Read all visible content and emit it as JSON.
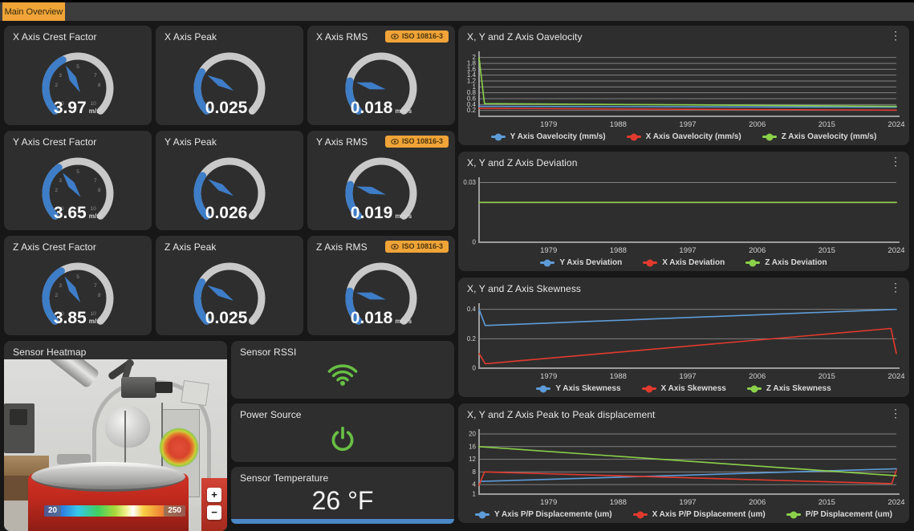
{
  "tab": {
    "label": "Main Overview"
  },
  "colors": {
    "accent_orange": "#f0a437",
    "gauge_blue": "#3e7dc7",
    "gauge_track": "#c9c9c9",
    "series_blue": "#5d9cd9",
    "series_red": "#e23a2e",
    "series_green": "#8bd14a",
    "status_green": "#68bf44",
    "temp_bar_blue": "#4a87c7"
  },
  "gauges": [
    {
      "title": "X Axis Crest Factor",
      "value": "3.97",
      "unit": "m/s²",
      "fraction": 0.397,
      "tick_max": 10,
      "ticks": [
        0,
        2,
        3,
        5,
        7,
        8,
        10
      ],
      "badge": null
    },
    {
      "title": "X Axis Peak",
      "value": "0.025",
      "unit": "g",
      "fraction": 0.28,
      "tick_max": 10,
      "ticks": [],
      "badge": null
    },
    {
      "title": "X Axis RMS",
      "value": "0.018",
      "unit": "mm/s",
      "fraction": 0.215,
      "tick_max": 10,
      "ticks": [],
      "badge": "ISO 10816-3"
    },
    {
      "title": "Y Axis Crest Factor",
      "value": "3.65",
      "unit": "m/s²",
      "fraction": 0.365,
      "tick_max": 10,
      "ticks": [
        0,
        2,
        3,
        5,
        7,
        8,
        10
      ],
      "badge": null
    },
    {
      "title": "Y Axis Peak",
      "value": "0.026",
      "unit": "g",
      "fraction": 0.29,
      "tick_max": 10,
      "ticks": [],
      "badge": null
    },
    {
      "title": "Y Axis RMS",
      "value": "0.019",
      "unit": "mm/s",
      "fraction": 0.225,
      "tick_max": 10,
      "ticks": [],
      "badge": "ISO 10816-3"
    },
    {
      "title": "Z Axis Crest Factor",
      "value": "3.85",
      "unit": "m/s²",
      "fraction": 0.385,
      "tick_max": 10,
      "ticks": [
        0,
        2,
        3,
        5,
        7,
        8,
        10
      ],
      "badge": null
    },
    {
      "title": "Z Axis Peak",
      "value": "0.025",
      "unit": "g",
      "fraction": 0.28,
      "tick_max": 10,
      "ticks": [],
      "badge": null
    },
    {
      "title": "Z Axis RMS",
      "value": "0.018",
      "unit": "mm/s",
      "fraction": 0.215,
      "tick_max": 10,
      "ticks": [],
      "badge": "ISO 10816-3"
    }
  ],
  "heatmap": {
    "title": "Sensor Heatmap",
    "scale_min": "20",
    "scale_max": "250",
    "zoom_in": "+",
    "zoom_out": "−"
  },
  "status": {
    "rssi_title": "Sensor RSSI",
    "power_title": "Power Source",
    "temp_title": "Sensor Temperature",
    "temp_value": "26 °F"
  },
  "chart_data": [
    {
      "type": "line",
      "title": "X, Y and Z Axis Oavelocity",
      "x_domain": [
        1970,
        2024
      ],
      "xticks": [
        1979,
        1988,
        1997,
        2006,
        2015,
        2024
      ],
      "ylim": [
        0,
        2.1
      ],
      "yticks": [
        0.2,
        0.4,
        0.6,
        0.8,
        1,
        1.2,
        1.4,
        1.6,
        1.8,
        2
      ],
      "grid": true,
      "legend_position": "bottom",
      "series": [
        {
          "name": "Y Axis Oavelocity (mm/s)",
          "color": "#5d9cd9",
          "points": [
            [
              1970,
              0.34
            ],
            [
              2024,
              0.31
            ]
          ]
        },
        {
          "name": "X Axis Oavelocity (mm/s)",
          "color": "#e23a2e",
          "points": [
            [
              1970,
              0.27
            ],
            [
              2024,
              0.21
            ]
          ]
        },
        {
          "name": "Z Axis Oavelocity (mm/s)",
          "color": "#8bd14a",
          "points": [
            [
              1970,
              2.0
            ],
            [
              1970.7,
              0.43
            ],
            [
              1997,
              0.39
            ],
            [
              2024,
              0.34
            ]
          ]
        }
      ]
    },
    {
      "type": "line",
      "title": "X, Y and Z Axis Deviation",
      "x_domain": [
        1970,
        2024
      ],
      "xticks": [
        1979,
        1988,
        1997,
        2006,
        2015,
        2024
      ],
      "ylim": [
        0,
        0.031
      ],
      "yticks": [
        0,
        0.03
      ],
      "grid": true,
      "legend_position": "bottom",
      "series": [
        {
          "name": "Y Axis Deviation",
          "color": "#5d9cd9",
          "points": [
            [
              1970,
              0.02
            ],
            [
              2024,
              0.02
            ]
          ]
        },
        {
          "name": "X Axis Deviation",
          "color": "#e23a2e",
          "points": [
            [
              1970,
              0.02
            ],
            [
              2024,
              0.02
            ]
          ]
        },
        {
          "name": "Z Axis Deviation",
          "color": "#8bd14a",
          "points": [
            [
              1970,
              0.02
            ],
            [
              2024,
              0.02
            ]
          ]
        }
      ]
    },
    {
      "type": "line",
      "title": "X, Y and Z Axis Skewness",
      "x_domain": [
        1970,
        2024
      ],
      "xticks": [
        1979,
        1988,
        1997,
        2006,
        2015,
        2024
      ],
      "ylim": [
        0,
        0.42
      ],
      "yticks": [
        0,
        0.2,
        0.4
      ],
      "grid": true,
      "legend_position": "bottom",
      "series": [
        {
          "name": "Y Axis Skewness",
          "color": "#5d9cd9",
          "points": [
            [
              1970,
              0.4
            ],
            [
              1970.8,
              0.29
            ],
            [
              2024,
              0.4
            ]
          ]
        },
        {
          "name": "X Axis Skewness",
          "color": "#e23a2e",
          "points": [
            [
              1970,
              0.1
            ],
            [
              1970.8,
              0.03
            ],
            [
              2023.3,
              0.27
            ],
            [
              2024,
              0.1
            ]
          ]
        },
        {
          "name": "Z Axis Skewness",
          "color": "#8bd14a",
          "points": []
        }
      ]
    },
    {
      "type": "line",
      "title": "X, Y and Z Axis Peak to Peak displacement",
      "x_domain": [
        1970,
        2024
      ],
      "xticks": [
        1979,
        1988,
        1997,
        2006,
        2015,
        2024
      ],
      "ylim": [
        1,
        20.5
      ],
      "yticks": [
        1,
        4,
        8,
        12,
        16,
        20
      ],
      "grid": true,
      "legend_position": "bottom",
      "series": [
        {
          "name": "Y Axis P/P Displacemente (um)",
          "color": "#5d9cd9",
          "points": [
            [
              1970,
              5
            ],
            [
              2024,
              9
            ]
          ]
        },
        {
          "name": "X Axis P/P Displacement (um)",
          "color": "#e23a2e",
          "points": [
            [
              1970,
              3.8
            ],
            [
              1970.7,
              8
            ],
            [
              2023.4,
              4.3
            ],
            [
              2024,
              8.5
            ]
          ]
        },
        {
          "name": "P/P Displacement (um)",
          "color": "#8bd14a",
          "points": [
            [
              1970,
              16
            ],
            [
              2024,
              6.8
            ]
          ]
        }
      ]
    }
  ]
}
